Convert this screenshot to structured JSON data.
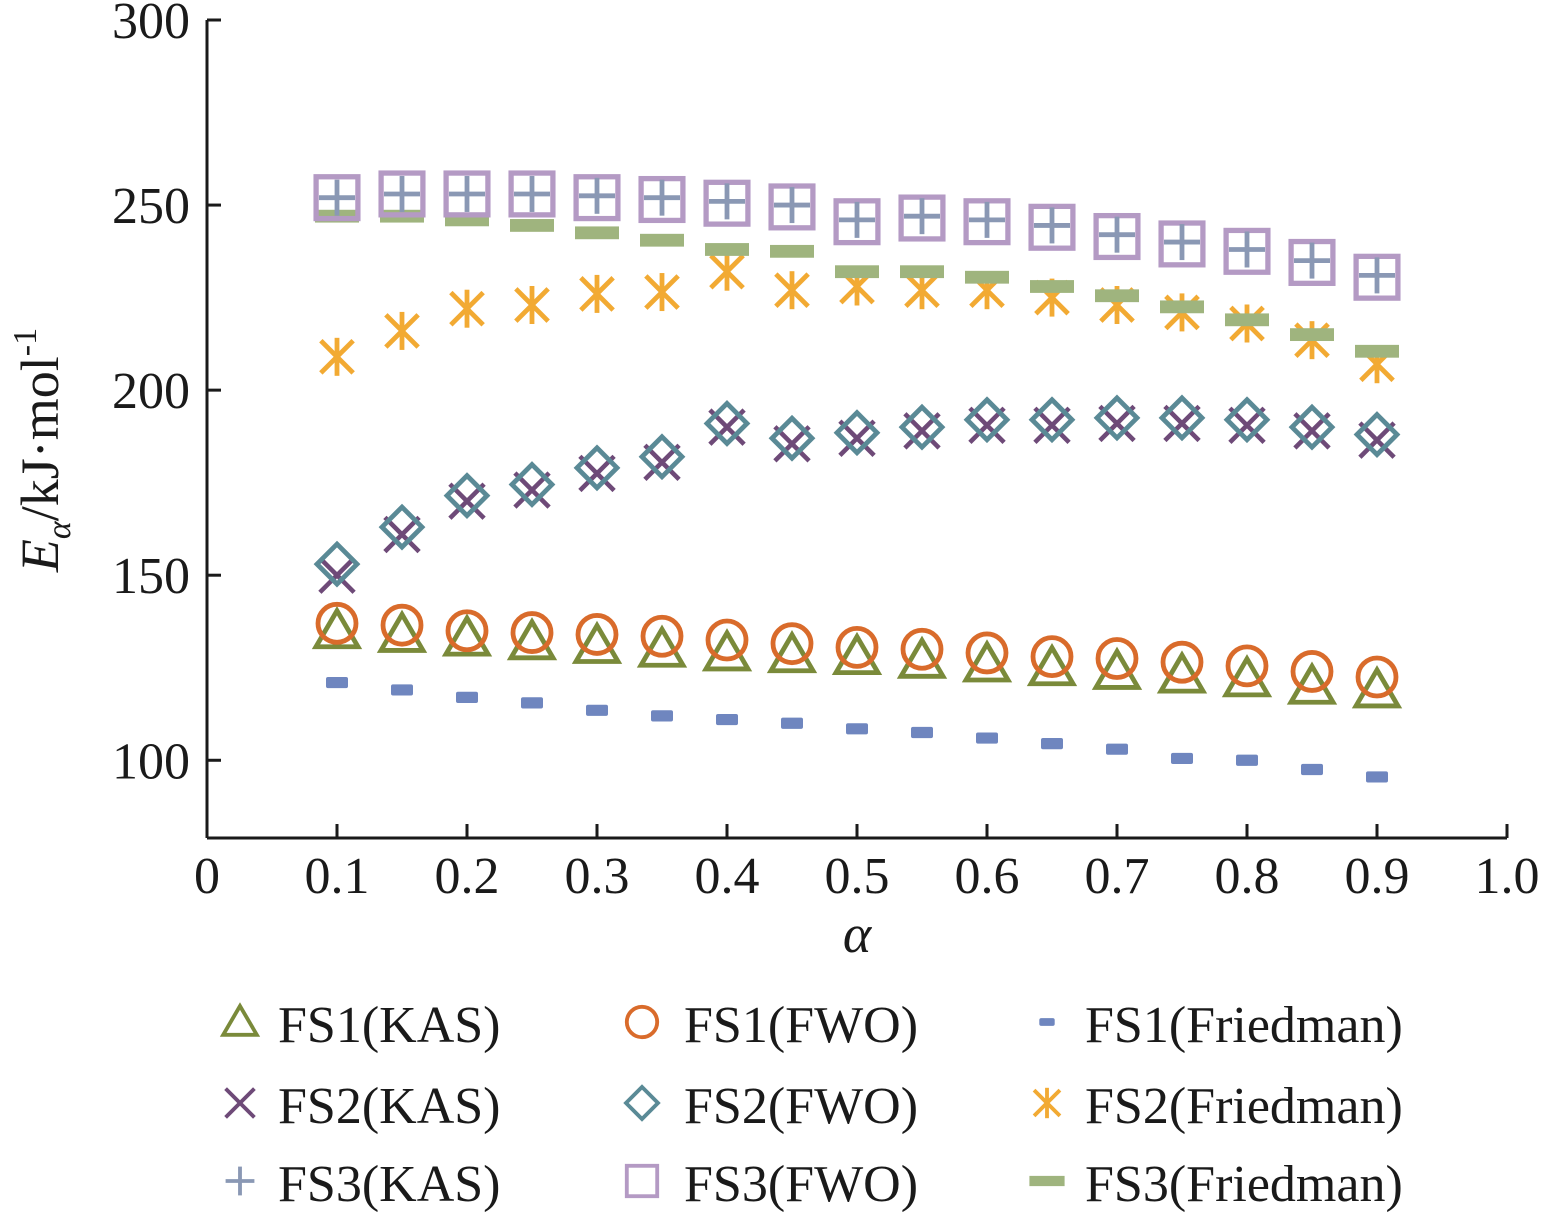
{
  "chart_data": {
    "type": "scatter",
    "xlabel": "α",
    "ylabel": {
      "base": "E",
      "subscript": "α",
      "unit": "/kJ·mol",
      "superscript": "-1"
    },
    "xlim": [
      0,
      1.0
    ],
    "ylim": [
      79,
      300
    ],
    "x_ticks": [
      "0",
      "0.1",
      "0.2",
      "0.3",
      "0.4",
      "0.5",
      "0.6",
      "0.7",
      "0.8",
      "0.9",
      "1.0"
    ],
    "y_ticks": [
      "100",
      "150",
      "200",
      "250",
      "300"
    ],
    "grid": false,
    "legend_position": "bottom",
    "x": [
      0.1,
      0.15,
      0.2,
      0.25,
      0.3,
      0.35,
      0.4,
      0.45,
      0.5,
      0.55,
      0.6,
      0.65,
      0.7,
      0.75,
      0.8,
      0.85,
      0.9
    ],
    "series": [
      {
        "name": "FS1(KAS)",
        "marker": "triangle",
        "color": "#7a8a3a",
        "values": [
          135,
          134,
          133,
          132,
          131,
          130,
          129,
          128.5,
          128,
          127,
          126,
          125,
          124,
          123,
          122,
          120,
          119
        ]
      },
      {
        "name": "FS1(FWO)",
        "marker": "circle",
        "color": "#d96b2b",
        "values": [
          137,
          136.5,
          135,
          134.5,
          134,
          133.5,
          132.5,
          131.5,
          130.5,
          130,
          129,
          128,
          127.5,
          126.5,
          125.5,
          124,
          122.5
        ]
      },
      {
        "name": "FS1(Friedman)",
        "marker": "dash-small",
        "color": "#6f86bf",
        "values": [
          121,
          119,
          117,
          115.5,
          113.5,
          112,
          111,
          110,
          108.5,
          107.5,
          106,
          104.5,
          103,
          100.5,
          100,
          97.5,
          95.5
        ]
      },
      {
        "name": "FS2(KAS)",
        "marker": "x",
        "color": "#6e4a78",
        "values": [
          150,
          161,
          170,
          173,
          177.5,
          180.5,
          190,
          185.5,
          187,
          189,
          190.5,
          190.5,
          191,
          191,
          190.5,
          189,
          186.5
        ]
      },
      {
        "name": "FS2(FWO)",
        "marker": "diamond",
        "color": "#5a8a96",
        "values": [
          153,
          163,
          171.5,
          174.5,
          179,
          182,
          191,
          187,
          188.5,
          190,
          192,
          192,
          192.5,
          192.5,
          192,
          190,
          188
        ]
      },
      {
        "name": "FS2(Friedman)",
        "marker": "asterisk",
        "color": "#f2aa33",
        "values": [
          209,
          216,
          222,
          223,
          226,
          226.5,
          232,
          227,
          228,
          227,
          227,
          225,
          223,
          221,
          218,
          213.5,
          207
        ]
      },
      {
        "name": "FS3(KAS)",
        "marker": "plus",
        "color": "#8a98b4",
        "values": [
          252,
          253,
          253,
          253,
          252.5,
          252,
          251,
          250,
          246,
          247,
          246,
          244.5,
          242,
          240,
          238,
          235,
          231
        ]
      },
      {
        "name": "FS3(FWO)",
        "marker": "square",
        "color": "#b49ac4",
        "values": [
          252,
          253,
          253,
          253,
          252,
          251.5,
          250.5,
          249.5,
          245.5,
          246.5,
          245.5,
          244,
          241.5,
          239.5,
          237.5,
          234.5,
          230.5
        ]
      },
      {
        "name": "FS3(Friedman)",
        "marker": "dash-large",
        "color": "#9fb47e",
        "values": [
          247,
          247,
          246,
          244.5,
          242.5,
          240.5,
          238,
          237.5,
          232,
          232,
          230.5,
          228,
          225.5,
          222.5,
          219,
          215,
          210.5
        ]
      }
    ]
  }
}
